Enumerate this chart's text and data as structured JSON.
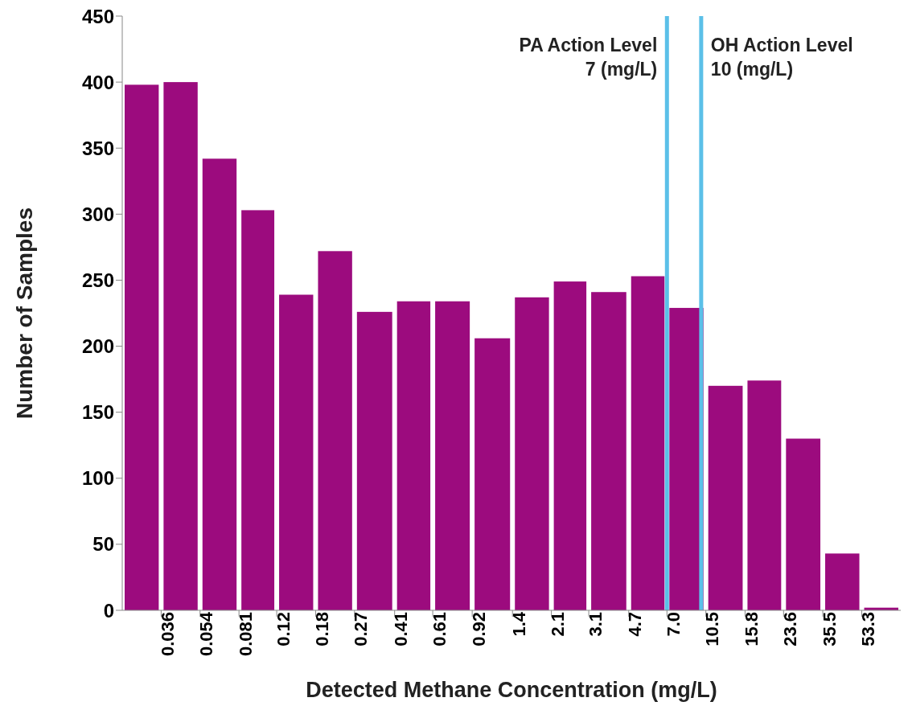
{
  "chart_data": {
    "type": "histogram",
    "xlabel": "Detected Methane Concentration (mg/L)",
    "ylabel": "Number of Samples",
    "bins": [
      0.024,
      0.036,
      0.054,
      0.081,
      0.12,
      0.18,
      0.27,
      0.41,
      0.61,
      0.92,
      1.4,
      2.1,
      3.1,
      4.7,
      7.0,
      10.5,
      15.8,
      23.6,
      35.5,
      53.3,
      80
    ],
    "values": [
      398,
      400,
      342,
      303,
      239,
      272,
      226,
      234,
      234,
      206,
      237,
      249,
      241,
      253,
      229,
      170,
      174,
      130,
      43,
      2
    ],
    "color": "#9c0b7e",
    "log": "x",
    "xlim": [
      0.024,
      80
    ],
    "xticks": [
      {
        "value": 0.036,
        "label": "0.036"
      },
      {
        "value": 0.054,
        "label": "0.054"
      },
      {
        "value": 0.081,
        "label": "0.081"
      },
      {
        "value": 0.12,
        "label": "0.12"
      },
      {
        "value": 0.18,
        "label": "0.18"
      },
      {
        "value": 0.27,
        "label": "0.27"
      },
      {
        "value": 0.41,
        "label": "0.41"
      },
      {
        "value": 0.61,
        "label": "0.61"
      },
      {
        "value": 0.92,
        "label": "0.92"
      },
      {
        "value": 1.4,
        "label": "1.4"
      },
      {
        "value": 2.1,
        "label": "2.1"
      },
      {
        "value": 3.1,
        "label": "3.1"
      },
      {
        "value": 4.7,
        "label": "4.7"
      },
      {
        "value": 7.0,
        "label": "7.0"
      },
      {
        "value": 10.5,
        "label": "10.5"
      },
      {
        "value": 15.8,
        "label": "15.8"
      },
      {
        "value": 23.6,
        "label": "23.6"
      },
      {
        "value": 35.5,
        "label": "35.5"
      },
      {
        "value": 53.3,
        "label": "53.3"
      }
    ],
    "ylim": [
      0,
      450
    ],
    "yticks": [
      0,
      50,
      100,
      150,
      200,
      250,
      300,
      350,
      400,
      450
    ],
    "grid": false,
    "legend": false,
    "ref_lines": [
      {
        "axis": "x",
        "value": 7,
        "label": "PA Action Level\n7 (mg/L)",
        "color": "#5bc0e8"
      },
      {
        "axis": "x",
        "value": 10,
        "label": "OH Action Level\n10 (mg/L)",
        "color": "#5bc0e8"
      }
    ]
  }
}
